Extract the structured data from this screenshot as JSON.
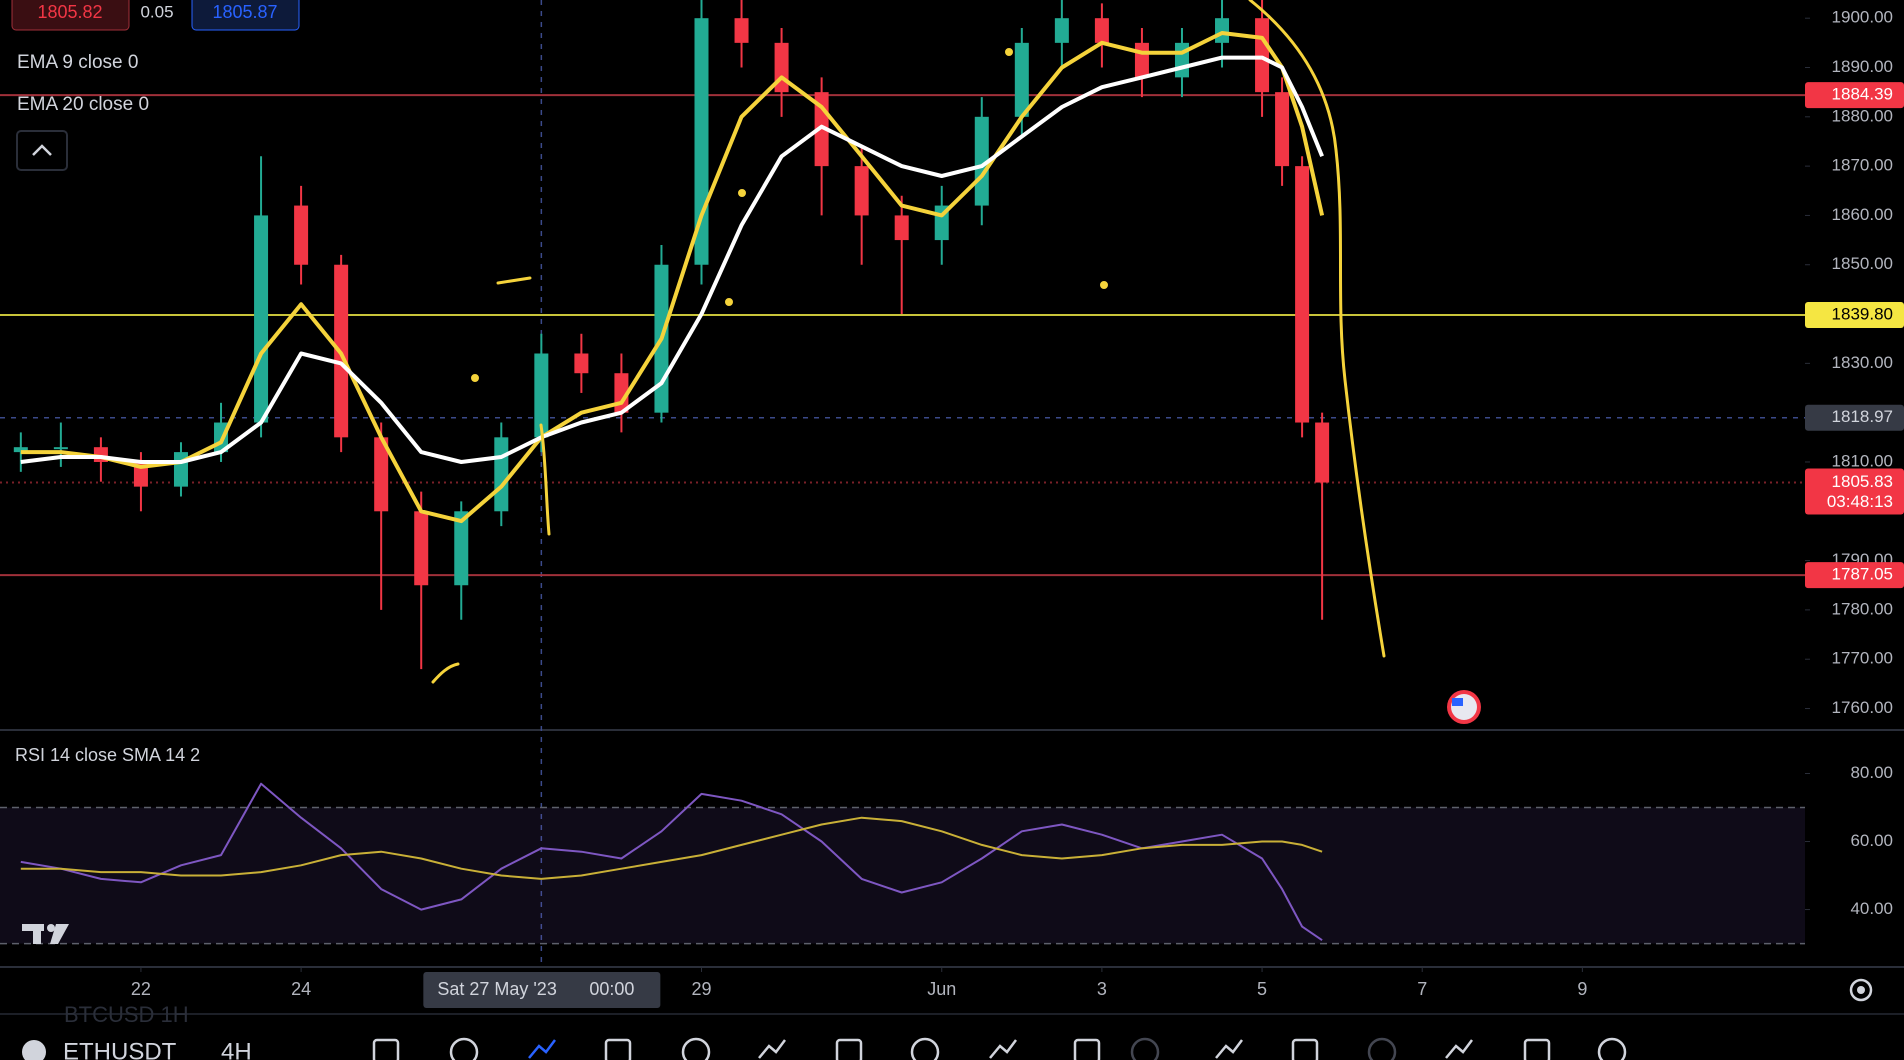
{
  "quote": {
    "bid": 1805.82,
    "spread": 0.05,
    "ask": 1805.87
  },
  "chart_data": [
    {
      "type": "candlestick",
      "x": [
        20.5,
        21,
        21.5,
        22,
        22.5,
        23,
        23.5,
        24,
        24.5,
        25,
        25.5,
        26,
        26.5,
        27,
        27.5,
        28,
        28.5,
        29,
        29.5,
        30,
        30.5,
        31,
        31.5,
        32,
        32.5,
        33,
        33.5,
        34,
        34.5,
        35,
        35.5,
        36,
        36.25,
        36.5,
        36.75
      ],
      "open": [
        1812,
        1813,
        1813,
        1810,
        1805,
        1812,
        1818,
        1862,
        1850,
        1815,
        1800,
        1785,
        1800,
        1815,
        1832,
        1828,
        1820,
        1850,
        1900,
        1895,
        1885,
        1870,
        1860,
        1855,
        1862,
        1880,
        1895,
        1900,
        1895,
        1888,
        1895,
        1900,
        1885,
        1870,
        1818
      ],
      "high": [
        1816,
        1818,
        1815,
        1812,
        1814,
        1822,
        1872,
        1866,
        1852,
        1818,
        1804,
        1802,
        1818,
        1836,
        1836,
        1832,
        1854,
        1905,
        1904,
        1898,
        1888,
        1874,
        1864,
        1866,
        1884,
        1898,
        1904,
        1903,
        1898,
        1898,
        1904,
        1904,
        1888,
        1872,
        1820
      ],
      "low": [
        1808,
        1809,
        1806,
        1800,
        1803,
        1810,
        1815,
        1846,
        1812,
        1780,
        1768,
        1778,
        1797,
        1812,
        1824,
        1816,
        1818,
        1846,
        1890,
        1880,
        1860,
        1850,
        1840,
        1850,
        1858,
        1876,
        1890,
        1890,
        1884,
        1884,
        1890,
        1880,
        1866,
        1815,
        1778
      ],
      "close": [
        1813,
        1813,
        1810,
        1805,
        1812,
        1818,
        1860,
        1850,
        1815,
        1800,
        1785,
        1800,
        1815,
        1832,
        1828,
        1820,
        1850,
        1900,
        1895,
        1885,
        1870,
        1860,
        1855,
        1862,
        1880,
        1895,
        1900,
        1895,
        1888,
        1895,
        1900,
        1885,
        1870,
        1818,
        1805.83
      ],
      "up_color": "#22ab94",
      "down_color": "#f23645",
      "series": [
        {
          "name": "EMA 9 close 0",
          "color": "#f5d33b",
          "values": [
            1812,
            1812,
            1811,
            1809,
            1810,
            1814,
            1832,
            1842,
            1832,
            1815,
            1800,
            1798,
            1805,
            1815,
            1820,
            1822,
            1835,
            1860,
            1880,
            1888,
            1882,
            1872,
            1862,
            1860,
            1868,
            1880,
            1890,
            1895,
            1893,
            1893,
            1897,
            1896,
            1890,
            1878,
            1860
          ]
        },
        {
          "name": "EMA 20 close 0",
          "color": "#ffffff",
          "values": [
            1810,
            1811,
            1811,
            1810,
            1810,
            1812,
            1818,
            1832,
            1830,
            1822,
            1812,
            1810,
            1811,
            1815,
            1818,
            1820,
            1826,
            1840,
            1858,
            1872,
            1878,
            1874,
            1870,
            1868,
            1870,
            1876,
            1882,
            1886,
            1888,
            1890,
            1892,
            1892,
            1890,
            1882,
            1872
          ]
        }
      ],
      "xlim": [
        20.24,
        42.78
      ],
      "ylim": [
        1756.05,
        1903.69
      ],
      "xticks": [
        {
          "value": 22,
          "label": "22"
        },
        {
          "value": 24,
          "label": "24"
        },
        {
          "value": 29,
          "label": "29"
        },
        {
          "value": 32,
          "label": "Jun"
        },
        {
          "value": 34,
          "label": "3"
        },
        {
          "value": 36,
          "label": "5"
        },
        {
          "value": 38,
          "label": "7"
        },
        {
          "value": 40,
          "label": "9"
        }
      ],
      "yticks": [
        {
          "value": 1760,
          "label": "1760.00"
        },
        {
          "value": 1770,
          "label": "1770.00"
        },
        {
          "value": 1780,
          "label": "1780.00"
        },
        {
          "value": 1790,
          "label": "1790.00"
        },
        {
          "value": 1810,
          "label": "1810.00"
        },
        {
          "value": 1830,
          "label": "1830.00"
        },
        {
          "value": 1850,
          "label": "1850.00"
        },
        {
          "value": 1860,
          "label": "1860.00"
        },
        {
          "value": 1870,
          "label": "1870.00"
        },
        {
          "value": 1880,
          "label": "1880.00"
        },
        {
          "value": 1890,
          "label": "1890.00"
        },
        {
          "value": 1900,
          "label": "1900.00"
        }
      ],
      "levels": [
        {
          "value": 1884.39,
          "color": "#a1303a",
          "label_bg": "#f23645",
          "text_color": "#ffffff"
        },
        {
          "value": 1839.8,
          "label": "1839.80",
          "color": "#c9c43a",
          "label_bg": "#f5e642",
          "text_color": "#000000"
        },
        {
          "value": 1787.05,
          "color": "#a1303a",
          "label_bg": "#f23645",
          "text_color": "#ffffff"
        },
        {
          "value": 1805.83,
          "color": "#7a2028",
          "label_bg": "#f23645",
          "text_color": "#ffffff",
          "countdown": "03:48:13"
        }
      ],
      "crosshair": {
        "x": 27,
        "price": 1818.97,
        "date": "Sat 27 May '23",
        "time": "00:00"
      }
    },
    {
      "type": "line",
      "title": "RSI 14 close SMA 14 2",
      "x": [
        20.5,
        21,
        21.5,
        22,
        22.5,
        23,
        23.5,
        24,
        24.5,
        25,
        25.5,
        26,
        26.5,
        27,
        27.5,
        28,
        28.5,
        29,
        29.5,
        30,
        30.5,
        31,
        31.5,
        32,
        32.5,
        33,
        33.5,
        34,
        34.5,
        35,
        35.5,
        36,
        36.25,
        36.5,
        36.75
      ],
      "series": [
        {
          "color": "#7e57c2",
          "values": [
            54,
            52,
            49,
            48,
            53,
            56,
            77,
            67,
            58,
            46,
            40,
            43,
            52,
            58,
            57,
            55,
            63,
            74,
            72,
            68,
            60,
            49,
            45,
            48,
            55,
            63,
            65,
            62,
            58,
            60,
            62,
            55,
            46,
            35,
            31
          ]
        },
        {
          "color": "#c9b037",
          "values": [
            52,
            52,
            51,
            51,
            50,
            50,
            51,
            53,
            56,
            57,
            55,
            52,
            50,
            49,
            50,
            52,
            54,
            56,
            59,
            62,
            65,
            67,
            66,
            63,
            59,
            56,
            55,
            56,
            58,
            59,
            59,
            60,
            60,
            59,
            57
          ]
        }
      ],
      "xlim": [
        20.24,
        42.78
      ],
      "ylim": [
        23.7,
        92.2
      ],
      "yticks": [
        {
          "value": 40,
          "label": "40.00"
        },
        {
          "value": 60,
          "label": "60.00"
        },
        {
          "value": 80,
          "label": "80.00"
        }
      ],
      "band": [
        30,
        70
      ]
    }
  ],
  "toolbar": {
    "symbol": "ETHUSDT",
    "interval": "4H",
    "ghost": "BTCUSD 1H"
  }
}
